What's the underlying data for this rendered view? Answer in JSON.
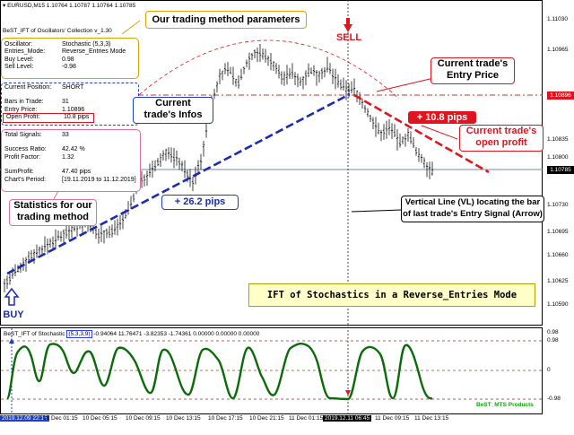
{
  "header": {
    "symbol": "EURUSD,M15",
    "quotes": "1.10764 1.10787 1.10764 1.10785",
    "indicator_name": "BeST_IFT of Oscillators' Collection v_1.30"
  },
  "params": [
    {
      "k": "Oscillator:",
      "v": "Stochastic (5,3,3)"
    },
    {
      "k": "Entries_Mode:",
      "v": "Reverse_Entries Mode"
    },
    {
      "k": "Buy Level:",
      "v": "0.98"
    },
    {
      "k": "Sell Level:",
      "v": "-0.98"
    }
  ],
  "position": {
    "k": "Current Position:",
    "v": "SHORT"
  },
  "trade_info": [
    {
      "k": "Bars in Trade:",
      "v": "31"
    },
    {
      "k": "Entry Price:",
      "v": "1.10896"
    },
    {
      "k": "Open Profit:",
      "v": "10.8 pips"
    }
  ],
  "stats": [
    {
      "k": "Total Signals:",
      "v": "33"
    },
    {
      "k": "Success Ratio:",
      "v": "42.42 %"
    },
    {
      "k": "Profit Factor:",
      "v": "1.32"
    },
    {
      "k": "SumProfit:",
      "v": "47.40  pips"
    },
    {
      "k": "Chart's Period:",
      "v": "[19.11.2019  to  11.12.2019]"
    }
  ],
  "callouts": {
    "params": "Our trading method parameters",
    "infos_line1": "Current",
    "infos_line2": "trade's Infos",
    "stats_line1": "Statistics for our",
    "stats_line2": "trading method",
    "sell": "SELL",
    "buy": "BUY",
    "entry_line1": "Current trade's",
    "entry_line2": "Entry Price",
    "open_profit_line1": "Current trade's",
    "open_profit_line2": "open profit",
    "pips_short": "+ 10.8 pips",
    "pips_long": "+ 26.2 pips",
    "vl_line1": "Vertical Line (VL) locating the bar",
    "vl_line2": "of last trade's Entry Signal (Arrow)",
    "title": "IFT of Stochastics in a Reverse_Entries Mode"
  },
  "price_axis": [
    "1.11030",
    "1.10965",
    "1.10896",
    "1.10835",
    "1.10800",
    "1.10785",
    "1.10730",
    "1.10695",
    "1.10660",
    "1.10625",
    "1.10590"
  ],
  "indicator": {
    "name": "BeST_IFT of Stochastic",
    "params": "(5,3,3,9)",
    "values": "-0.94064 11.76471 -3.82353 -1.74361 0.00000 0.00000 0.00000",
    "levels": [
      "0.98",
      "-0.98"
    ],
    "axis_top": "0.98",
    "axis_mid": "0",
    "brand": "BeST_MTS Products"
  },
  "time_axis": [
    "2019.12.09 22:15",
    "10 Dec 01:15",
    "10 Dec 05:15",
    "10 Dec 09:15",
    "10 Dec 13:15",
    "10 Dec 17:15",
    "10 Dec 21:15",
    "11 Dec 01:15",
    "2019.12.11 06:45",
    "11 Dec 09:15",
    "11 Dec 13:15"
  ],
  "colors": {
    "bull_line": "#1a2bb5",
    "bear_line": "#e0141e",
    "osc": "#0b6b0b",
    "callout_blue": "#1f3fbf",
    "callout_red": "#e0141e"
  }
}
